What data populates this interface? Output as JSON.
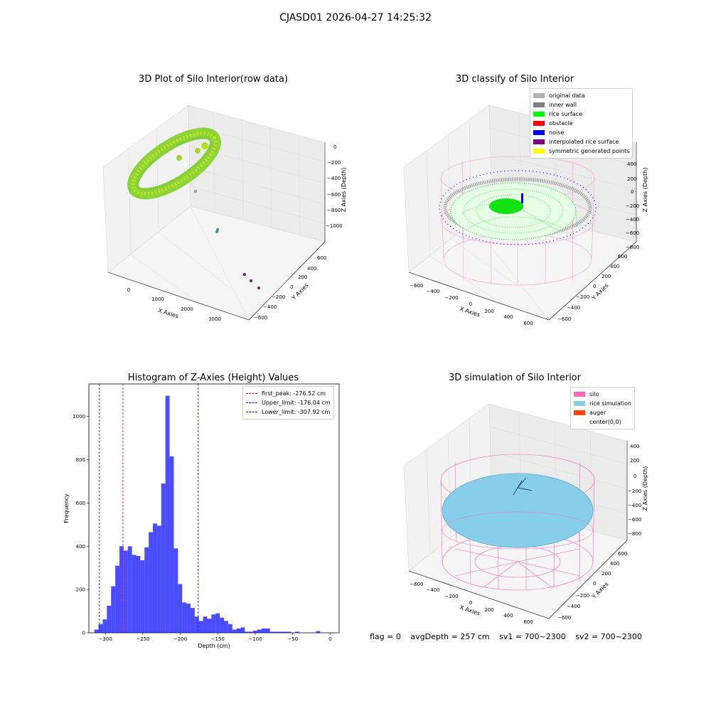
{
  "suptitle": "CJASD01 2026-04-27 14:25:32",
  "panels": {
    "raw": {
      "title": "3D Plot of Silo Interior(row data)",
      "xlabel": "X Axies",
      "ylabel": "Y Axies",
      "zlabel": "Z Axies (Depth)",
      "xticks": [
        "0",
        "1000",
        "2000",
        "3000"
      ],
      "yticks": [
        "600",
        "400",
        "200",
        "0",
        "−200",
        "−400",
        "−600"
      ],
      "zticks": [
        "0",
        "−200",
        "−400",
        "−600",
        "−800",
        "−1000"
      ]
    },
    "classify": {
      "title": "3D classify of Silo Interior",
      "xlabel": "X Axies",
      "ylabel": "Y Axies",
      "zlabel": "Z Axies (Depth)",
      "xticks": [
        "−600",
        "−400",
        "−200",
        "0",
        "200",
        "400",
        "600"
      ],
      "yticks": [
        "600",
        "400",
        "200",
        "0",
        "−200",
        "−400",
        "−600"
      ],
      "zticks": [
        "400",
        "200",
        "0",
        "−200",
        "−400",
        "−600",
        "−800"
      ],
      "legend": [
        {
          "label": "original data",
          "color": "#b3b3b3"
        },
        {
          "label": "inner wall",
          "color": "#808080"
        },
        {
          "label": "rice surface",
          "color": "#00ff00"
        },
        {
          "label": "obstacle",
          "color": "#ff0000"
        },
        {
          "label": "noise",
          "color": "#0000ff"
        },
        {
          "label": "interpolated rice surface",
          "color": "#800080"
        },
        {
          "label": "symmetric generated points",
          "color": "#ffff00"
        }
      ]
    },
    "simulation": {
      "title": "3D simulation of Silo Interior",
      "xlabel": "X Axies",
      "ylabel": "Y Axies",
      "zlabel": "Z Axies (Depth)",
      "xticks": [
        "−600",
        "−400",
        "−200",
        "0",
        "200",
        "400",
        "600"
      ],
      "yticks": [
        "600",
        "400",
        "200",
        "0",
        "−200",
        "−400",
        "−600"
      ],
      "zticks": [
        "400",
        "200",
        "0",
        "−200",
        "−400",
        "−600",
        "−800"
      ],
      "legend": [
        {
          "label": "silo",
          "color": "#ff69b4"
        },
        {
          "label": "rice simulation",
          "color": "#87ceeb"
        },
        {
          "label": "auger",
          "color": "#ff4500"
        },
        {
          "label": "center(0,0)",
          "color": "#ffffff"
        }
      ]
    }
  },
  "chart_data": {
    "type": "bar",
    "title": "Histogram of Z-Axies (Height) Values",
    "xlabel": "Depth (cm)",
    "ylabel": "Frequency",
    "xlim": [
      -322,
      12
    ],
    "ylim": [
      0,
      1150
    ],
    "xticks": [
      -300,
      -250,
      -200,
      -150,
      -100,
      -50,
      0
    ],
    "yticks": [
      0,
      200,
      400,
      600,
      800,
      1000
    ],
    "bar_color": "#0000ff",
    "bin_start": -314.7,
    "bin_width": 5.58,
    "values": [
      15,
      40,
      62,
      125,
      215,
      310,
      400,
      380,
      400,
      360,
      355,
      335,
      395,
      465,
      505,
      495,
      690,
      1095,
      815,
      390,
      225,
      140,
      135,
      115,
      75,
      55,
      75,
      65,
      85,
      90,
      70,
      55,
      40,
      15,
      20,
      25,
      5,
      5,
      10,
      15,
      20,
      20,
      5,
      5,
      5,
      5,
      5,
      0,
      5,
      0,
      0,
      0,
      0,
      8
    ],
    "lines": [
      {
        "label": "first_peak: -276.52 cm",
        "x": -276.52,
        "color": "#ff0000"
      },
      {
        "label": "Upper_limit: -176.04 cm",
        "x": -176.04,
        "color": "#0000ff"
      },
      {
        "label": "Lower_limit: -307.92 cm",
        "x": -307.92,
        "color": "#0000ff"
      }
    ],
    "legend_position": "top-right"
  },
  "status": {
    "flag": "flag = 0",
    "avg": "avgDepth = 257 cm",
    "sv1": "sv1 = 700~2300",
    "sv2": "sv2 = 700~2300"
  }
}
